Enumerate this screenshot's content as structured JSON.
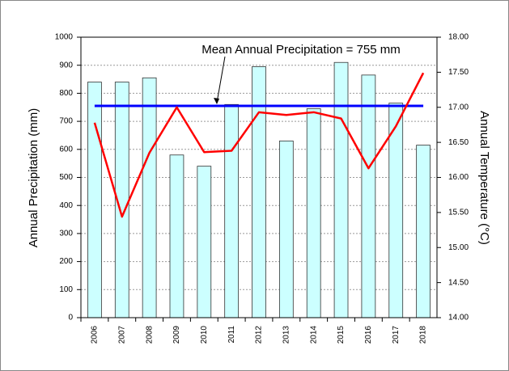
{
  "chart_data": {
    "type": "bar",
    "ylabel": "Annual Precipitation (mm)",
    "y2label": "Annual Temperature (°C)",
    "annotation": "Mean Annual Precipitation = 755 mm",
    "mean_line": {
      "value": 755,
      "color": "#0000ff"
    },
    "categories": [
      "2006",
      "2007",
      "2008",
      "2009",
      "2010",
      "2011",
      "2012",
      "2013",
      "2014",
      "2015",
      "2016",
      "2017",
      "2018"
    ],
    "series": [
      {
        "type": "bar",
        "color": "#ccffff",
        "values": [
          840,
          840,
          855,
          580,
          540,
          760,
          895,
          630,
          745,
          910,
          865,
          765,
          615
        ]
      },
      {
        "type": "line",
        "axis": "y2",
        "color": "#ff0000",
        "values": [
          16.78,
          15.44,
          16.35,
          17.0,
          16.36,
          16.38,
          16.93,
          16.89,
          16.93,
          16.84,
          16.13,
          16.73,
          17.49
        ]
      }
    ],
    "ylim": [
      0,
      1000
    ],
    "yticks": [
      0,
      100,
      200,
      300,
      400,
      500,
      600,
      700,
      800,
      900,
      1000
    ],
    "y2lim": [
      14,
      18
    ],
    "y2ticks": [
      {
        "value": 14,
        "label": "14.00"
      },
      {
        "value": 14.5,
        "label": "14.50"
      },
      {
        "value": 15,
        "label": "15.00"
      },
      {
        "value": 15.5,
        "label": "15.50"
      },
      {
        "value": 16,
        "label": "16.00"
      },
      {
        "value": 16.5,
        "label": "16.50"
      },
      {
        "value": 17,
        "label": "17.00"
      },
      {
        "value": 17.5,
        "label": "17.50"
      },
      {
        "value": 18,
        "label": "18.00"
      }
    ],
    "grid": true
  }
}
